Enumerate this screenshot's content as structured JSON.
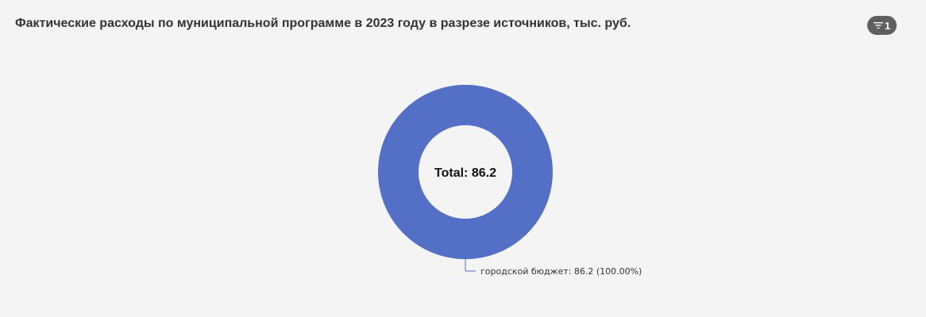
{
  "header": {
    "title": "Фактические расходы по муниципальной программе в 2023 году в разрезе источников, тыс. руб.",
    "filter_count": "1",
    "filter_icon": "filter-icon"
  },
  "chart_data": {
    "type": "pie",
    "variant": "donut",
    "title": "Фактические расходы по муниципальной программе в 2023 году в разрезе источников, тыс. руб.",
    "center_label": "Total: 86.2",
    "total": 86.2,
    "slices": [
      {
        "label": "городской бюджет",
        "value": 86.2,
        "percent": "100.00%",
        "color": "#5470c6",
        "label_text": "городской бюджет: 86.2 (100.00%)"
      }
    ],
    "legend": "none",
    "colors": {
      "slice": "#5470c6",
      "background": "#f4f4f4"
    }
  }
}
